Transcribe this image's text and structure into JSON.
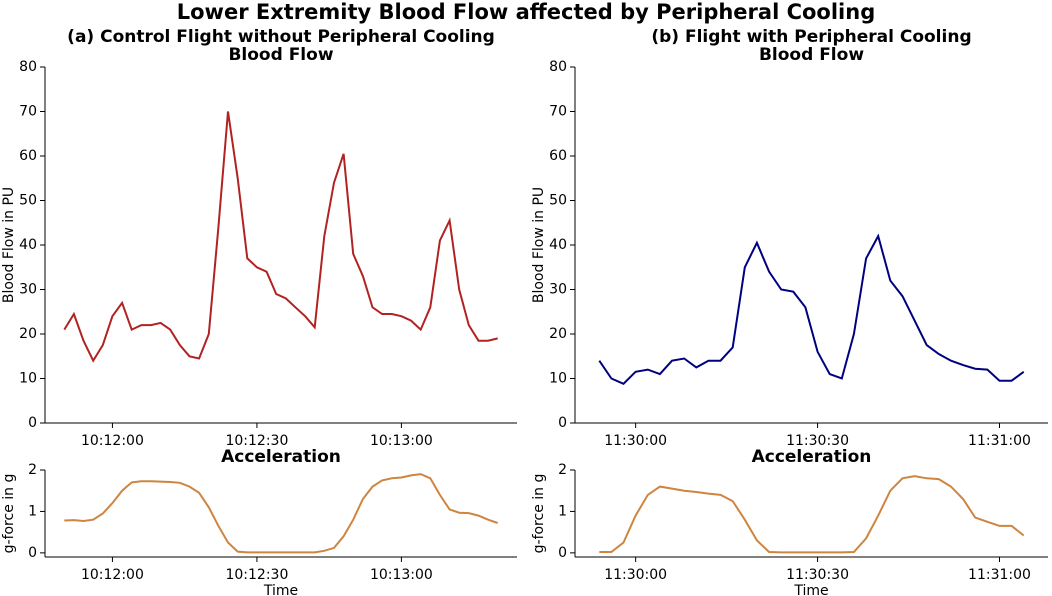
{
  "title": "Lower Extremity Blood Flow affected by Peripheral Cooling",
  "chart_data": [
    {
      "type": "line",
      "title": "(a) Control Flight without Peripheral Cooling",
      "subtitle": "Blood Flow",
      "ylabel": "Blood Flow in PU",
      "color": "#b22222",
      "x": [
        "10:11:50",
        "10:11:52",
        "10:11:54",
        "10:11:56",
        "10:11:58",
        "10:12:00",
        "10:12:02",
        "10:12:04",
        "10:12:06",
        "10:12:08",
        "10:12:10",
        "10:12:12",
        "10:12:14",
        "10:12:16",
        "10:12:18",
        "10:12:20",
        "10:12:22",
        "10:12:24",
        "10:12:26",
        "10:12:28",
        "10:12:30",
        "10:12:32",
        "10:12:34",
        "10:12:36",
        "10:12:38",
        "10:12:40",
        "10:12:42",
        "10:12:44",
        "10:12:46",
        "10:12:48",
        "10:12:50",
        "10:12:52",
        "10:12:54",
        "10:12:56",
        "10:12:58",
        "10:13:00",
        "10:13:02",
        "10:13:04",
        "10:13:06",
        "10:13:08",
        "10:13:10",
        "10:13:12",
        "10:13:14",
        "10:13:16",
        "10:13:18",
        "10:13:20"
      ],
      "values": [
        21,
        24.5,
        18.5,
        14,
        17.5,
        24,
        27,
        21,
        22,
        22,
        22.5,
        21,
        17.5,
        15,
        14.5,
        20,
        44,
        70,
        55,
        37,
        35,
        34,
        29,
        28,
        26,
        24,
        21.5,
        42,
        54,
        60.5,
        38,
        33,
        26,
        24.5,
        24.5,
        24,
        23,
        21,
        26,
        41,
        45.5,
        30,
        22,
        18.5,
        18.5,
        19
      ],
      "xlim": [
        "10:11:46",
        "10:13:24"
      ],
      "xticks": [
        "10:12:00",
        "10:12:30",
        "10:13:00"
      ],
      "ylim": [
        0,
        80
      ],
      "yticks": [
        0,
        10,
        20,
        30,
        40,
        50,
        60,
        70,
        80
      ]
    },
    {
      "type": "line",
      "title": "(b) Flight with Peripheral Cooling",
      "subtitle": "Blood Flow",
      "ylabel": "Blood Flow in PU",
      "color": "#000080",
      "x": [
        "11:29:54",
        "11:29:56",
        "11:29:58",
        "11:30:00",
        "11:30:02",
        "11:30:04",
        "11:30:06",
        "11:30:08",
        "11:30:10",
        "11:30:12",
        "11:30:14",
        "11:30:16",
        "11:30:18",
        "11:30:20",
        "11:30:22",
        "11:30:24",
        "11:30:26",
        "11:30:28",
        "11:30:30",
        "11:30:32",
        "11:30:34",
        "11:30:36",
        "11:30:38",
        "11:30:40",
        "11:30:42",
        "11:30:44",
        "11:30:46",
        "11:30:48",
        "11:30:50",
        "11:30:52",
        "11:30:54",
        "11:30:56",
        "11:30:58",
        "11:31:00",
        "11:31:02",
        "11:31:04"
      ],
      "values": [
        14,
        10,
        8.8,
        11.5,
        12,
        11,
        14,
        14.5,
        12.5,
        14,
        14,
        17,
        35,
        40.5,
        34,
        30,
        29.5,
        26,
        16,
        11,
        10,
        20,
        37,
        42,
        32,
        28.5,
        23,
        17.5,
        15.5,
        14,
        13,
        12.2,
        12,
        9.5,
        9.5,
        11.5
      ],
      "xlim": [
        "11:29:50",
        "11:31:08"
      ],
      "xticks": [
        "11:30:00",
        "11:30:30",
        "11:31:00"
      ],
      "ylim": [
        0,
        80
      ],
      "yticks": [
        0,
        10,
        20,
        30,
        40,
        50,
        60,
        70,
        80
      ]
    },
    {
      "type": "line",
      "title": "Acceleration",
      "xlabel": "Time",
      "ylabel": "g-force in g",
      "color": "#cd853f",
      "x": [
        "10:11:50",
        "10:11:52",
        "10:11:54",
        "10:11:56",
        "10:11:58",
        "10:12:00",
        "10:12:02",
        "10:12:04",
        "10:12:06",
        "10:12:08",
        "10:12:10",
        "10:12:12",
        "10:12:14",
        "10:12:16",
        "10:12:18",
        "10:12:20",
        "10:12:22",
        "10:12:24",
        "10:12:26",
        "10:12:28",
        "10:12:30",
        "10:12:32",
        "10:12:34",
        "10:12:36",
        "10:12:38",
        "10:12:40",
        "10:12:42",
        "10:12:44",
        "10:12:46",
        "10:12:48",
        "10:12:50",
        "10:12:52",
        "10:12:54",
        "10:12:56",
        "10:12:58",
        "10:13:00",
        "10:13:02",
        "10:13:04",
        "10:13:06",
        "10:13:08",
        "10:13:10",
        "10:13:12",
        "10:13:14",
        "10:13:16",
        "10:13:18",
        "10:13:20"
      ],
      "values": [
        0.78,
        0.79,
        0.77,
        0.8,
        0.95,
        1.2,
        1.5,
        1.7,
        1.73,
        1.73,
        1.72,
        1.71,
        1.69,
        1.6,
        1.45,
        1.1,
        0.65,
        0.25,
        0.03,
        0.01,
        0.01,
        0.01,
        0.01,
        0.01,
        0.01,
        0.01,
        0.01,
        0.05,
        0.12,
        0.4,
        0.8,
        1.3,
        1.6,
        1.75,
        1.8,
        1.82,
        1.87,
        1.9,
        1.8,
        1.4,
        1.05,
        0.97,
        0.96,
        0.9,
        0.8,
        0.72
      ],
      "xlim": [
        "10:11:46",
        "10:13:24"
      ],
      "xticks": [
        "10:12:00",
        "10:12:30",
        "10:13:00"
      ],
      "ylim": [
        -0.1,
        2
      ],
      "yticks": [
        0,
        1,
        2
      ]
    },
    {
      "type": "line",
      "title": "Acceleration",
      "xlabel": "Time",
      "ylabel": "g-force in g",
      "color": "#cd853f",
      "x": [
        "11:29:54",
        "11:29:56",
        "11:29:58",
        "11:30:00",
        "11:30:02",
        "11:30:04",
        "11:30:06",
        "11:30:08",
        "11:30:10",
        "11:30:12",
        "11:30:14",
        "11:30:16",
        "11:30:18",
        "11:30:20",
        "11:30:22",
        "11:30:24",
        "11:30:26",
        "11:30:28",
        "11:30:30",
        "11:30:32",
        "11:30:34",
        "11:30:36",
        "11:30:38",
        "11:30:40",
        "11:30:42",
        "11:30:44",
        "11:30:46",
        "11:30:48",
        "11:30:50",
        "11:30:52",
        "11:30:54",
        "11:30:56",
        "11:30:58",
        "11:31:00",
        "11:31:02",
        "11:31:04"
      ],
      "values": [
        0.02,
        0.02,
        0.25,
        0.9,
        1.4,
        1.6,
        1.55,
        1.5,
        1.47,
        1.43,
        1.4,
        1.25,
        0.8,
        0.3,
        0.02,
        0.01,
        0.01,
        0.01,
        0.01,
        0.01,
        0.01,
        0.02,
        0.35,
        0.9,
        1.5,
        1.8,
        1.85,
        1.8,
        1.78,
        1.6,
        1.3,
        0.85,
        0.75,
        0.65,
        0.65,
        0.42
      ],
      "xlim": [
        "11:29:50",
        "11:31:08"
      ],
      "xticks": [
        "11:30:00",
        "11:30:30",
        "11:31:00"
      ],
      "ylim": [
        -0.1,
        2
      ],
      "yticks": [
        0,
        1,
        2
      ]
    }
  ]
}
